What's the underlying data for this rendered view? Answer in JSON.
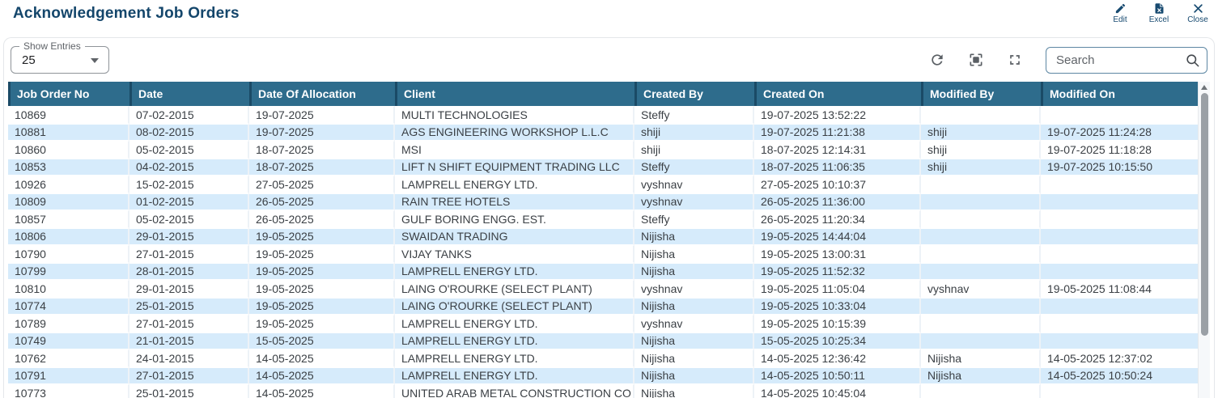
{
  "page": {
    "title": "Acknowledgement Job Orders"
  },
  "actions": {
    "edit": "Edit",
    "excel": "Excel",
    "close": "Close"
  },
  "controls": {
    "show_entries_label": "Show Entries",
    "show_entries_value": "25",
    "search_placeholder": "Search"
  },
  "table": {
    "columns": [
      "Job Order No",
      "Date",
      "Date Of Allocation",
      "Client",
      "Created By",
      "Created On",
      "Modified By",
      "Modified On"
    ],
    "rows": [
      [
        "10869",
        "07-02-2015",
        "19-07-2025",
        "MULTI TECHNOLOGIES",
        "Steffy",
        "19-07-2025 13:52:22",
        "",
        ""
      ],
      [
        "10881",
        "08-02-2015",
        "19-07-2025",
        "AGS ENGINEERING WORKSHOP L.L.C",
        "shiji",
        "19-07-2025 11:21:38",
        "shiji",
        "19-07-2025 11:24:28"
      ],
      [
        "10860",
        "05-02-2015",
        "18-07-2025",
        "MSI",
        "shiji",
        "18-07-2025 12:14:31",
        "shiji",
        "19-07-2025 11:18:28"
      ],
      [
        "10853",
        "04-02-2015",
        "18-07-2025",
        "LIFT N SHIFT EQUIPMENT TRADING LLC",
        "Steffy",
        "18-07-2025 11:06:35",
        "shiji",
        "19-07-2025 10:15:50"
      ],
      [
        "10926",
        "15-02-2015",
        "27-05-2025",
        "LAMPRELL ENERGY LTD.",
        "vyshnav",
        "27-05-2025 10:10:37",
        "",
        ""
      ],
      [
        "10809",
        "01-02-2015",
        "26-05-2025",
        "RAIN TREE HOTELS",
        "vyshnav",
        "26-05-2025 11:36:00",
        "",
        ""
      ],
      [
        "10857",
        "05-02-2015",
        "26-05-2025",
        "GULF BORING ENGG. EST.",
        "Steffy",
        "26-05-2025 11:20:34",
        "",
        ""
      ],
      [
        "10806",
        "29-01-2015",
        "19-05-2025",
        "SWAIDAN TRADING",
        "Nijisha",
        "19-05-2025 14:44:04",
        "",
        ""
      ],
      [
        "10790",
        "27-01-2015",
        "19-05-2025",
        "VIJAY TANKS",
        "Nijisha",
        "19-05-2025 13:00:31",
        "",
        ""
      ],
      [
        "10799",
        "28-01-2015",
        "19-05-2025",
        "LAMPRELL ENERGY LTD.",
        "Nijisha",
        "19-05-2025 11:52:32",
        "",
        ""
      ],
      [
        "10810",
        "29-01-2015",
        "19-05-2025",
        "LAING O'ROURKE (SELECT PLANT)",
        "vyshnav",
        "19-05-2025 11:05:04",
        "vyshnav",
        "19-05-2025 11:08:44"
      ],
      [
        "10774",
        "25-01-2015",
        "19-05-2025",
        "LAING O'ROURKE (SELECT PLANT)",
        "Nijisha",
        "19-05-2025 10:33:04",
        "",
        ""
      ],
      [
        "10789",
        "27-01-2015",
        "19-05-2025",
        "LAMPRELL ENERGY LTD.",
        "vyshnav",
        "19-05-2025 10:15:39",
        "",
        ""
      ],
      [
        "10749",
        "21-01-2015",
        "15-05-2025",
        "LAMPRELL ENERGY LTD.",
        "Nijisha",
        "15-05-2025 10:25:34",
        "",
        ""
      ],
      [
        "10762",
        "24-01-2015",
        "14-05-2025",
        "LAMPRELL ENERGY LTD.",
        "Nijisha",
        "14-05-2025 12:36:42",
        "Nijisha",
        "14-05-2025 12:37:02"
      ],
      [
        "10791",
        "27-01-2015",
        "14-05-2025",
        "LAMPRELL ENERGY LTD.",
        "Nijisha",
        "14-05-2025 10:50:11",
        "Nijisha",
        "14-05-2025 10:50:24"
      ]
    ],
    "partial_row": [
      "10773",
      "25-01-2015",
      "14-05-2025",
      "UNITED ARAB METAL CONSTRUCTION CO",
      "Nijisha",
      "14-05-2025 10:45:04",
      "",
      ""
    ]
  },
  "colors": {
    "header_bg": "#2e6c8c",
    "header_border": "#1a4a66",
    "row_alt": "#d6ebfb",
    "title": "#14466b",
    "action": "#174a70"
  }
}
